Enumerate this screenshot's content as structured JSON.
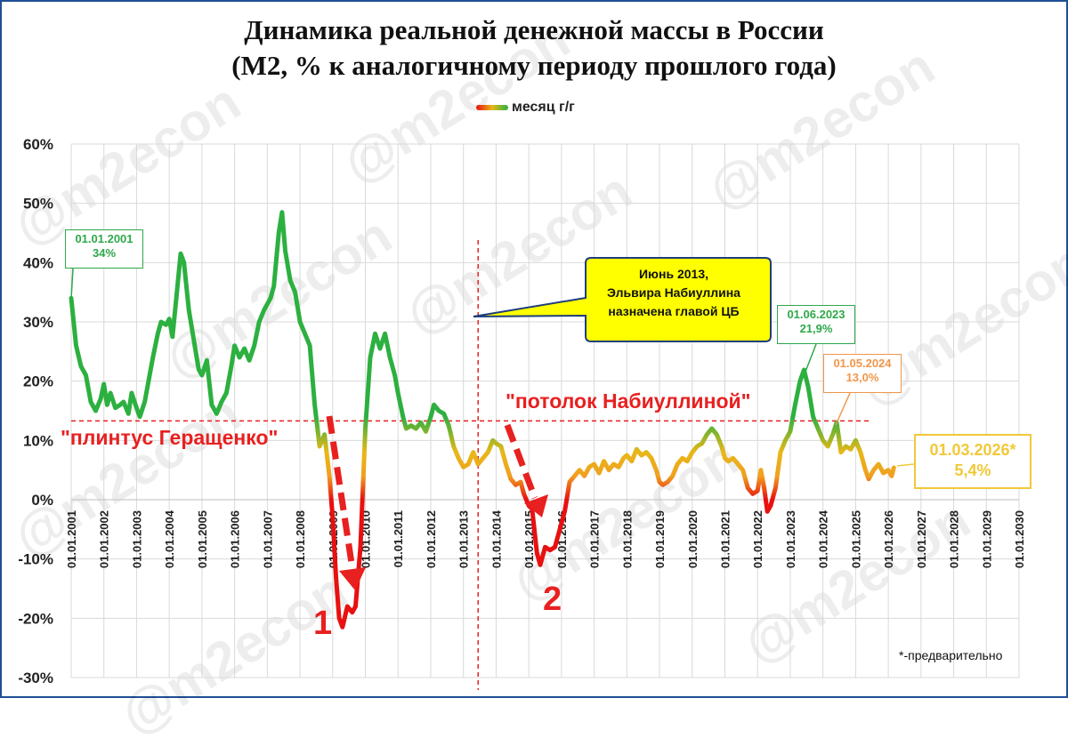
{
  "title_line1": "Динамика реальной денежной массы в России",
  "title_line2": "(М2, % к аналогичному периоду прошлого года)",
  "legend_label": "месяц г/г",
  "watermark": "@m2econ",
  "annotations": {
    "box_2001_date": "01.01.2001",
    "box_2001_value": "34%",
    "box_2023_date": "01.06.2023",
    "box_2023_value": "21,9%",
    "box_2024_date": "01.05.2024",
    "box_2024_value": "13,0%",
    "box_2026_date": "01.03.2026*",
    "box_2026_value": "5,4%",
    "callout_line1": "Июнь 2013,",
    "callout_line2": "Эльвира Набиуллина",
    "callout_line3": "назначена главой ЦБ",
    "floor_label": "\"плинтус Геращенко\"",
    "ceiling_label": "\"потолок Набиуллиной\"",
    "crisis1": "1",
    "crisis2": "2",
    "footnote": "*-предварительно"
  },
  "colors": {
    "frame": "#1f4e96",
    "high": "#2cb040",
    "mid": "#e8b818",
    "low": "#e81010",
    "guide": "#e82020"
  },
  "chart_data": {
    "type": "line",
    "title": "Динамика реальной денежной массы в России (М2, % к аналогичному периоду прошлого года)",
    "series": [
      {
        "name": "месяц г/г",
        "points": [
          [
            2001.0,
            34
          ],
          [
            2001.15,
            26
          ],
          [
            2001.3,
            22.5
          ],
          [
            2001.45,
            21
          ],
          [
            2001.6,
            16.5
          ],
          [
            2001.75,
            15
          ],
          [
            2001.9,
            17
          ],
          [
            2002.0,
            19.5
          ],
          [
            2002.1,
            16
          ],
          [
            2002.2,
            18
          ],
          [
            2002.35,
            15.5
          ],
          [
            2002.5,
            16
          ],
          [
            2002.6,
            16.5
          ],
          [
            2002.75,
            14.5
          ],
          [
            2002.85,
            18
          ],
          [
            2003.0,
            15.5
          ],
          [
            2003.1,
            14
          ],
          [
            2003.25,
            16.5
          ],
          [
            2003.5,
            24
          ],
          [
            2003.65,
            28
          ],
          [
            2003.75,
            30
          ],
          [
            2003.9,
            29.5
          ],
          [
            2004.0,
            30.5
          ],
          [
            2004.1,
            27.5
          ],
          [
            2004.25,
            36
          ],
          [
            2004.35,
            41.5
          ],
          [
            2004.45,
            40
          ],
          [
            2004.6,
            32
          ],
          [
            2004.75,
            27
          ],
          [
            2004.9,
            22
          ],
          [
            2005.0,
            21
          ],
          [
            2005.15,
            23.5
          ],
          [
            2005.3,
            16
          ],
          [
            2005.45,
            14.5
          ],
          [
            2005.6,
            16.5
          ],
          [
            2005.75,
            18
          ],
          [
            2005.9,
            22.5
          ],
          [
            2006.0,
            26
          ],
          [
            2006.15,
            24
          ],
          [
            2006.3,
            25.5
          ],
          [
            2006.45,
            23.5
          ],
          [
            2006.6,
            26
          ],
          [
            2006.75,
            30
          ],
          [
            2006.9,
            32
          ],
          [
            2007.0,
            33
          ],
          [
            2007.1,
            34
          ],
          [
            2007.2,
            36
          ],
          [
            2007.35,
            45
          ],
          [
            2007.45,
            48.5
          ],
          [
            2007.55,
            42
          ],
          [
            2007.7,
            37
          ],
          [
            2007.85,
            35
          ],
          [
            2008.0,
            30
          ],
          [
            2008.15,
            28
          ],
          [
            2008.3,
            26
          ],
          [
            2008.45,
            16
          ],
          [
            2008.6,
            9
          ],
          [
            2008.75,
            11
          ],
          [
            2008.9,
            4
          ],
          [
            2009.0,
            -3
          ],
          [
            2009.1,
            -13
          ],
          [
            2009.2,
            -20
          ],
          [
            2009.3,
            -21.5
          ],
          [
            2009.45,
            -18
          ],
          [
            2009.6,
            -19
          ],
          [
            2009.7,
            -18
          ],
          [
            2009.85,
            -8
          ],
          [
            2010.0,
            12
          ],
          [
            2010.15,
            24
          ],
          [
            2010.3,
            28
          ],
          [
            2010.45,
            25.5
          ],
          [
            2010.6,
            28
          ],
          [
            2010.75,
            24
          ],
          [
            2010.9,
            21
          ],
          [
            2011.0,
            18
          ],
          [
            2011.15,
            14
          ],
          [
            2011.25,
            12
          ],
          [
            2011.4,
            12.5
          ],
          [
            2011.55,
            12
          ],
          [
            2011.7,
            13
          ],
          [
            2011.85,
            11.5
          ],
          [
            2012.0,
            14
          ],
          [
            2012.1,
            16
          ],
          [
            2012.25,
            15
          ],
          [
            2012.4,
            14.5
          ],
          [
            2012.55,
            12.5
          ],
          [
            2012.7,
            9
          ],
          [
            2012.85,
            7
          ],
          [
            2013.0,
            5.5
          ],
          [
            2013.15,
            6
          ],
          [
            2013.3,
            8
          ],
          [
            2013.45,
            6
          ],
          [
            2013.6,
            7
          ],
          [
            2013.75,
            8
          ],
          [
            2013.9,
            10
          ],
          [
            2014.0,
            9.5
          ],
          [
            2014.15,
            9
          ],
          [
            2014.3,
            6
          ],
          [
            2014.45,
            3.5
          ],
          [
            2014.6,
            2.5
          ],
          [
            2014.75,
            3
          ],
          [
            2014.85,
            1
          ],
          [
            2015.0,
            -1
          ],
          [
            2015.1,
            -1.5
          ],
          [
            2015.25,
            -9
          ],
          [
            2015.35,
            -11
          ],
          [
            2015.5,
            -8
          ],
          [
            2015.65,
            -8.5
          ],
          [
            2015.8,
            -8
          ],
          [
            2015.95,
            -5
          ],
          [
            2016.1,
            -2
          ],
          [
            2016.25,
            3
          ],
          [
            2016.4,
            4
          ],
          [
            2016.55,
            5
          ],
          [
            2016.7,
            4
          ],
          [
            2016.85,
            5.5
          ],
          [
            2017.0,
            6
          ],
          [
            2017.15,
            4.5
          ],
          [
            2017.3,
            6.5
          ],
          [
            2017.45,
            5
          ],
          [
            2017.6,
            6
          ],
          [
            2017.75,
            5.5
          ],
          [
            2017.9,
            7
          ],
          [
            2018.0,
            7.5
          ],
          [
            2018.15,
            6.5
          ],
          [
            2018.3,
            8.5
          ],
          [
            2018.45,
            7.5
          ],
          [
            2018.6,
            8
          ],
          [
            2018.75,
            7
          ],
          [
            2018.9,
            5
          ],
          [
            2019.0,
            3
          ],
          [
            2019.1,
            2.5
          ],
          [
            2019.25,
            3
          ],
          [
            2019.4,
            4
          ],
          [
            2019.55,
            6
          ],
          [
            2019.7,
            7
          ],
          [
            2019.85,
            6.5
          ],
          [
            2020.0,
            8
          ],
          [
            2020.15,
            9
          ],
          [
            2020.3,
            9.5
          ],
          [
            2020.45,
            11
          ],
          [
            2020.6,
            12
          ],
          [
            2020.75,
            11
          ],
          [
            2020.9,
            9
          ],
          [
            2021.0,
            7
          ],
          [
            2021.1,
            6.5
          ],
          [
            2021.25,
            7
          ],
          [
            2021.4,
            6
          ],
          [
            2021.55,
            5
          ],
          [
            2021.7,
            2
          ],
          [
            2021.85,
            1
          ],
          [
            2022.0,
            1.5
          ],
          [
            2022.1,
            5
          ],
          [
            2022.2,
            2
          ],
          [
            2022.3,
            -2
          ],
          [
            2022.4,
            -1
          ],
          [
            2022.55,
            2
          ],
          [
            2022.7,
            8
          ],
          [
            2022.85,
            10
          ],
          [
            2023.0,
            11.5
          ],
          [
            2023.15,
            16
          ],
          [
            2023.3,
            20
          ],
          [
            2023.42,
            21.9
          ],
          [
            2023.55,
            19
          ],
          [
            2023.7,
            14
          ],
          [
            2023.85,
            12
          ],
          [
            2024.0,
            10
          ],
          [
            2024.15,
            9
          ],
          [
            2024.3,
            11
          ],
          [
            2024.42,
            13
          ],
          [
            2024.55,
            8
          ],
          [
            2024.7,
            9
          ],
          [
            2024.85,
            8.5
          ],
          [
            2025.0,
            10
          ],
          [
            2025.15,
            8
          ],
          [
            2025.3,
            5
          ],
          [
            2025.4,
            3.5
          ],
          [
            2025.55,
            5
          ],
          [
            2025.7,
            6
          ],
          [
            2025.85,
            4.5
          ],
          [
            2026.0,
            5
          ],
          [
            2026.1,
            4
          ],
          [
            2026.17,
            5.4
          ]
        ]
      }
    ],
    "x_tick_labels": [
      "01.01.2001",
      "01.01.2002",
      "01.01.2003",
      "01.01.2004",
      "01.01.2005",
      "01.01.2006",
      "01.01.2007",
      "01.01.2008",
      "01.01.2009",
      "01.01.2010",
      "01.01.2011",
      "01.01.2012",
      "01.01.2013",
      "01.01.2014",
      "01.01.2015",
      "01.01.2016",
      "01.01.2017",
      "01.01.2018",
      "01.01.2019",
      "01.01.2020",
      "01.01.2021",
      "01.01.2022",
      "01.01.2023",
      "01.01.2024",
      "01.01.2025",
      "01.01.2026",
      "01.01.2027",
      "01.01.2028",
      "01.01.2029",
      "01.01.2030"
    ],
    "y_tick_labels": [
      "60%",
      "50%",
      "40%",
      "30%",
      "20%",
      "10%",
      "0%",
      "-10%",
      "-20%",
      "-30%"
    ],
    "ylim": [
      -30,
      60
    ],
    "xlim": [
      2001,
      2030
    ],
    "grid": true,
    "legend": "top",
    "reference_lines": {
      "horizontal_value": 13.3,
      "vertical_date": 2013.45
    }
  }
}
